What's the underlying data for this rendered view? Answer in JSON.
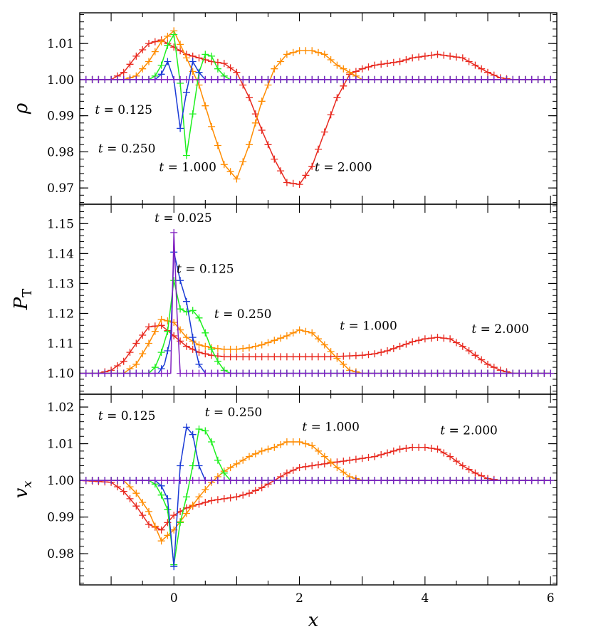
{
  "chart_data": {
    "type": "line",
    "xlabel": "x",
    "xlim": [
      -1.5,
      6.1
    ],
    "xticks": [
      0,
      2,
      4,
      6
    ],
    "colors": {
      "t0025": "#8020c0",
      "t0125": "#1a3ad6",
      "t0250": "#1ef01e",
      "t1000": "#ff8c00",
      "t2000": "#e8281e"
    },
    "panels": [
      {
        "name": "rho",
        "ylabel": "ρ",
        "ylim": [
          0.9655,
          1.0185
        ],
        "yticks": [
          0.97,
          0.98,
          0.99,
          1.0,
          1.01
        ],
        "ytick_labels": [
          "0.97",
          "0.98",
          "0.99",
          "1.00",
          "1.01"
        ],
        "annotations": [
          {
            "text": "t = 0.125",
            "series": "t0125",
            "x": -0.8,
            "y": 0.9905
          },
          {
            "text": "t = 0.250",
            "series": "t0250",
            "x": -0.75,
            "y": 0.9798
          },
          {
            "text": "t = 1.000",
            "series": "t1000",
            "x": 0.22,
            "y": 0.9747
          },
          {
            "text": "t = 2.000",
            "series": "t2000",
            "x": 2.7,
            "y": 0.9747
          }
        ],
        "series": [
          {
            "name": "t = 0.025",
            "key": "t0025",
            "x": [
              -1.5,
              6.0
            ],
            "y": [
              1.0,
              1.0
            ]
          },
          {
            "name": "t = 0.125",
            "key": "t0125",
            "x": [
              -1.5,
              -0.3,
              -0.2,
              -0.1,
              0.0,
              0.1,
              0.2,
              0.3,
              0.4,
              0.5,
              6.0
            ],
            "y": [
              1.0,
              1.0,
              1.0015,
              1.005,
              1.0,
              0.9865,
              0.9965,
              1.005,
              1.002,
              1.0,
              1.0
            ]
          },
          {
            "name": "t = 0.250",
            "key": "t0250",
            "x": [
              -1.5,
              -0.4,
              -0.3,
              -0.2,
              -0.1,
              0.0,
              0.1,
              0.2,
              0.3,
              0.4,
              0.5,
              0.6,
              0.7,
              0.8,
              0.9,
              6.0
            ],
            "y": [
              1.0,
              1.0,
              1.001,
              1.004,
              1.0095,
              1.0125,
              0.999,
              0.979,
              0.9905,
              1.002,
              1.007,
              1.0065,
              1.003,
              1.001,
              1.0,
              1.0
            ]
          },
          {
            "name": "t = 1.000",
            "key": "t1000",
            "x": [
              -1.5,
              -0.8,
              -0.6,
              -0.4,
              -0.2,
              0.0,
              0.2,
              0.4,
              0.6,
              0.8,
              1.0,
              1.2,
              1.4,
              1.6,
              1.8,
              2.0,
              2.2,
              2.4,
              2.6,
              2.8,
              3.0,
              6.0
            ],
            "y": [
              1.0,
              1.0,
              1.001,
              1.005,
              1.0105,
              1.0135,
              1.006,
              0.9985,
              0.987,
              0.9765,
              0.9725,
              0.982,
              0.994,
              1.003,
              1.007,
              1.008,
              1.008,
              1.007,
              1.004,
              1.002,
              1.0,
              1.0
            ]
          },
          {
            "name": "t = 2.000",
            "key": "t2000",
            "x": [
              -1.5,
              -1.0,
              -0.8,
              -0.6,
              -0.4,
              -0.2,
              0.0,
              0.2,
              0.4,
              0.6,
              0.8,
              1.0,
              1.2,
              1.4,
              1.6,
              1.8,
              2.0,
              2.2,
              2.4,
              2.6,
              2.8,
              3.0,
              3.2,
              3.4,
              3.6,
              3.8,
              4.0,
              4.2,
              4.4,
              4.6,
              4.8,
              5.0,
              5.2,
              5.4,
              5.6,
              6.0
            ],
            "y": [
              1.0,
              1.0,
              1.002,
              1.0065,
              1.01,
              1.011,
              1.009,
              1.007,
              1.006,
              1.005,
              1.0045,
              1.002,
              0.995,
              0.986,
              0.978,
              0.9715,
              0.971,
              0.976,
              0.9855,
              0.995,
              1.0015,
              1.003,
              1.004,
              1.0045,
              1.005,
              1.006,
              1.0065,
              1.007,
              1.0065,
              1.006,
              1.004,
              1.002,
              1.0005,
              1.0,
              1.0,
              1.0
            ]
          }
        ]
      },
      {
        "name": "pt",
        "ylabel": "P",
        "ylabel_sub": "T",
        "ylim": [
          1.093,
          1.1565
        ],
        "yticks": [
          1.1,
          1.11,
          1.12,
          1.13,
          1.14,
          1.15
        ],
        "ytick_labels": [
          "1.10",
          "1.11",
          "1.12",
          "1.13",
          "1.14",
          "1.15"
        ],
        "annotations": [
          {
            "text": "t = 0.025",
            "series": "t0025",
            "x": 0.15,
            "y": 1.1505
          },
          {
            "text": "t = 0.125",
            "series": "t0125",
            "x": 0.5,
            "y": 1.1335
          },
          {
            "text": "t = 0.250",
            "series": "t0250",
            "x": 1.1,
            "y": 1.1185
          },
          {
            "text": "t = 1.000",
            "series": "t1000",
            "x": 3.1,
            "y": 1.1145
          },
          {
            "text": "t = 2.000",
            "series": "t2000",
            "x": 5.2,
            "y": 1.1135
          }
        ],
        "series": [
          {
            "name": "t = 0.025",
            "key": "t0025",
            "x": [
              -1.5,
              -0.05,
              0.0,
              0.05,
              0.1,
              6.0
            ],
            "y": [
              1.1,
              1.1,
              1.147,
              1.12,
              1.1,
              1.1
            ]
          },
          {
            "name": "t = 0.125",
            "key": "t0125",
            "x": [
              -1.5,
              -0.25,
              -0.15,
              -0.05,
              0.0,
              0.1,
              0.2,
              0.3,
              0.4,
              0.5,
              6.0
            ],
            "y": [
              1.1,
              1.1,
              1.103,
              1.112,
              1.1405,
              1.131,
              1.124,
              1.112,
              1.103,
              1.1,
              1.1
            ]
          },
          {
            "name": "t = 0.250",
            "key": "t0250",
            "x": [
              -1.5,
              -0.4,
              -0.3,
              -0.2,
              -0.1,
              0.0,
              0.1,
              0.2,
              0.3,
              0.4,
              0.5,
              0.6,
              0.7,
              0.8,
              0.9,
              6.0
            ],
            "y": [
              1.1,
              1.1,
              1.102,
              1.107,
              1.114,
              1.131,
              1.1215,
              1.1205,
              1.121,
              1.1185,
              1.1135,
              1.108,
              1.104,
              1.101,
              1.1,
              1.1
            ]
          },
          {
            "name": "t = 1.000",
            "key": "t1000",
            "x": [
              -1.5,
              -0.8,
              -0.6,
              -0.4,
              -0.2,
              0.0,
              0.2,
              0.4,
              0.6,
              0.8,
              1.0,
              1.2,
              1.4,
              1.6,
              1.8,
              2.0,
              2.2,
              2.4,
              2.6,
              2.8,
              3.0,
              6.0
            ],
            "y": [
              1.1,
              1.1,
              1.103,
              1.11,
              1.118,
              1.117,
              1.112,
              1.1095,
              1.1085,
              1.108,
              1.108,
              1.1085,
              1.1095,
              1.111,
              1.1125,
              1.1145,
              1.1135,
              1.1095,
              1.105,
              1.101,
              1.1,
              1.1
            ]
          },
          {
            "name": "t = 2.000",
            "key": "t2000",
            "x": [
              -1.5,
              -1.2,
              -1.0,
              -0.8,
              -0.6,
              -0.4,
              -0.2,
              0.0,
              0.2,
              0.4,
              0.6,
              0.8,
              1.0,
              1.5,
              2.0,
              2.5,
              3.0,
              3.2,
              3.4,
              3.6,
              3.8,
              4.0,
              4.2,
              4.4,
              4.6,
              4.8,
              5.0,
              5.2,
              5.4,
              5.6,
              6.0
            ],
            "y": [
              1.1,
              1.1,
              1.101,
              1.104,
              1.11,
              1.1155,
              1.116,
              1.1125,
              1.109,
              1.107,
              1.106,
              1.1055,
              1.1055,
              1.1055,
              1.1055,
              1.1055,
              1.106,
              1.1065,
              1.1075,
              1.109,
              1.1105,
              1.1115,
              1.112,
              1.1115,
              1.109,
              1.106,
              1.103,
              1.101,
              1.1,
              1.1,
              1.1
            ]
          }
        ]
      },
      {
        "name": "vx",
        "ylabel": "v",
        "ylabel_sub": "x",
        "ylim": [
          0.9715,
          1.0235
        ],
        "yticks": [
          0.98,
          0.99,
          1.0,
          1.01,
          1.02
        ],
        "ytick_labels": [
          "0.98",
          "0.99",
          "1.00",
          "1.01",
          "1.02"
        ],
        "annotations": [
          {
            "text": "t = 0.125",
            "series": "t0125",
            "x": -0.75,
            "y": 1.0165
          },
          {
            "text": "t = 0.250",
            "series": "t0250",
            "x": 0.95,
            "y": 1.0175
          },
          {
            "text": "t = 1.000",
            "series": "t1000",
            "x": 2.5,
            "y": 1.0135
          },
          {
            "text": "t = 2.000",
            "series": "t2000",
            "x": 4.7,
            "y": 1.0125
          }
        ],
        "series": [
          {
            "name": "t = 0.025",
            "key": "t0025",
            "x": [
              -1.5,
              6.0
            ],
            "y": [
              1.0,
              1.0
            ]
          },
          {
            "name": "t = 0.125",
            "key": "t0125",
            "x": [
              -1.5,
              -0.3,
              -0.2,
              -0.1,
              0.0,
              0.1,
              0.2,
              0.3,
              0.4,
              0.5,
              6.0
            ],
            "y": [
              1.0,
              1.0,
              0.9985,
              0.995,
              0.9765,
              1.004,
              1.0145,
              1.0125,
              1.004,
              1.0,
              1.0
            ]
          },
          {
            "name": "t = 0.250",
            "key": "t0250",
            "x": [
              -1.5,
              -0.4,
              -0.3,
              -0.2,
              -0.1,
              0.0,
              0.1,
              0.2,
              0.3,
              0.4,
              0.5,
              0.6,
              0.7,
              0.8,
              0.9,
              6.0
            ],
            "y": [
              1.0,
              1.0,
              0.999,
              0.996,
              0.992,
              0.977,
              0.9885,
              0.9955,
              1.004,
              1.014,
              1.0135,
              1.0105,
              1.0055,
              1.002,
              1.0,
              1.0
            ]
          },
          {
            "name": "t = 1.000",
            "key": "t1000",
            "x": [
              -1.5,
              -0.8,
              -0.6,
              -0.4,
              -0.2,
              0.0,
              0.2,
              0.4,
              0.6,
              0.8,
              1.0,
              1.2,
              1.4,
              1.6,
              1.8,
              2.0,
              2.2,
              2.4,
              2.6,
              2.8,
              3.0,
              6.0
            ],
            "y": [
              1.0,
              1.0,
              0.9965,
              0.9915,
              0.9835,
              0.9865,
              0.991,
              0.9955,
              0.9995,
              1.0025,
              1.0045,
              1.0065,
              1.008,
              1.009,
              1.0105,
              1.0105,
              1.0095,
              1.0065,
              1.0035,
              1.001,
              1.0,
              1.0
            ]
          },
          {
            "name": "t = 2.000",
            "key": "t2000",
            "x": [
              -1.5,
              -1.0,
              -0.8,
              -0.6,
              -0.4,
              -0.2,
              0.0,
              0.2,
              0.4,
              0.6,
              0.8,
              1.0,
              1.2,
              1.4,
              1.6,
              1.8,
              2.0,
              2.2,
              2.4,
              2.6,
              2.8,
              3.0,
              3.2,
              3.4,
              3.6,
              3.8,
              4.0,
              4.2,
              4.4,
              4.6,
              4.8,
              5.0,
              5.2,
              5.4,
              5.6,
              6.0
            ],
            "y": [
              1.0,
              0.9995,
              0.997,
              0.993,
              0.988,
              0.9865,
              0.9905,
              0.9925,
              0.9935,
              0.9945,
              0.995,
              0.9955,
              0.9965,
              0.998,
              1.0,
              1.002,
              1.0035,
              1.004,
              1.0045,
              1.005,
              1.0055,
              1.006,
              1.0065,
              1.0075,
              1.0085,
              1.009,
              1.009,
              1.0085,
              1.0065,
              1.004,
              1.002,
              1.0005,
              1.0,
              1.0,
              1.0,
              1.0
            ]
          }
        ]
      }
    ]
  }
}
